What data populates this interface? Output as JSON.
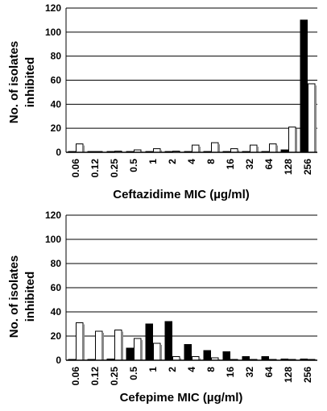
{
  "chart_data": [
    {
      "type": "bar",
      "categories": [
        "0.06",
        "0.12",
        "0.25",
        "0.5",
        "1",
        "2",
        "4",
        "8",
        "16",
        "32",
        "64",
        "128",
        "256"
      ],
      "series": [
        {
          "fill": "#000000",
          "values": [
            0,
            0,
            0,
            0,
            0,
            0,
            0,
            0,
            0,
            0,
            0,
            2,
            110
          ]
        },
        {
          "fill": "#ffffff",
          "values": [
            7,
            0,
            1,
            2,
            3,
            1,
            6,
            8,
            3,
            6,
            7,
            21,
            57
          ]
        }
      ],
      "xlabel": "Ceftazidime MIC (µg/ml)",
      "ylabel": "No. of  isolates inhibited",
      "ylabel_lines": [
        "No. of  isolates",
        "inhibited"
      ],
      "ylim": [
        0,
        120
      ],
      "yticks": [
        0,
        20,
        40,
        60,
        80,
        100,
        120
      ],
      "grid": true
    },
    {
      "type": "bar",
      "categories": [
        "0.06",
        "0.12",
        "0.25",
        "0.5",
        "1",
        "2",
        "4",
        "8",
        "16",
        "32",
        "64",
        "128",
        "256"
      ],
      "series": [
        {
          "fill": "#000000",
          "values": [
            0,
            0,
            1,
            10,
            30,
            32,
            13,
            8,
            7,
            3,
            3,
            1,
            1
          ]
        },
        {
          "fill": "#ffffff",
          "values": [
            31,
            24,
            25,
            18,
            14,
            3,
            3,
            2,
            0,
            0,
            0,
            0,
            0
          ]
        }
      ],
      "xlabel": "Cefepime MIC (µg/ml)",
      "ylabel": "No. of  isolates inhibited",
      "ylabel_lines": [
        "No. of  isolates",
        "inhibited"
      ],
      "ylim": [
        0,
        120
      ],
      "yticks": [
        0,
        20,
        40,
        60,
        80,
        100,
        120
      ],
      "grid": true
    }
  ]
}
